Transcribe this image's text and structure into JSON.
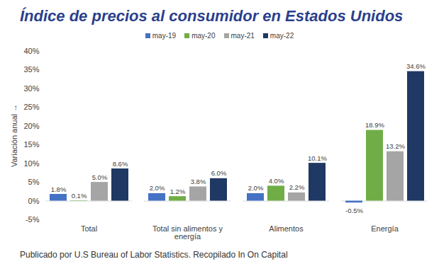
{
  "chart_data": {
    "type": "bar",
    "title": "Índice de precios al consumidor en Estados Unidos",
    "y_label": "Variación anual",
    "note": "Publicado por U.S Bureau of Labor Statistics. Recopilado In On Capital",
    "categories": [
      "Total",
      "Total sin alimentos y energía",
      "Alimentos",
      "Energía"
    ],
    "series": [
      {
        "name": "may-19",
        "color": "#4472c4",
        "values": [
          1.8,
          2.0,
          2.0,
          -0.5
        ],
        "value_labels": [
          "1.8%",
          "2.0%",
          "2.0%",
          "-0.5%"
        ]
      },
      {
        "name": "may-20",
        "color": "#70ad47",
        "values": [
          0.1,
          1.2,
          4.0,
          18.9
        ],
        "value_labels": [
          "0.1%",
          "1.2%",
          "4.0%",
          "18.9%"
        ]
      },
      {
        "name": "may-21",
        "color": "#a5a5a5",
        "values": [
          5.0,
          3.8,
          2.2,
          13.2
        ],
        "value_labels": [
          "5.0%",
          "3.8%",
          "2.2%",
          "13.2%"
        ]
      },
      {
        "name": "may-22",
        "color": "#1f3864",
        "values": [
          8.6,
          6.0,
          10.1,
          34.6
        ],
        "value_labels": [
          "8.6%",
          "6.0%",
          "10.1%",
          "34.6%"
        ]
      }
    ],
    "ylim": [
      -5,
      40
    ],
    "yticks": [
      {
        "value": -5,
        "label": "-5%"
      },
      {
        "value": 0,
        "label": "0%"
      },
      {
        "value": 5,
        "label": "5%"
      },
      {
        "value": 10,
        "label": "10%"
      },
      {
        "value": 15,
        "label": "15%"
      },
      {
        "value": 20,
        "label": "20%"
      },
      {
        "value": 25,
        "label": "25%"
      },
      {
        "value": 30,
        "label": "30%"
      },
      {
        "value": 35,
        "label": "35%"
      },
      {
        "value": 40,
        "label": "40%"
      }
    ],
    "grid": false,
    "legend": "top",
    "data_labels": true
  }
}
